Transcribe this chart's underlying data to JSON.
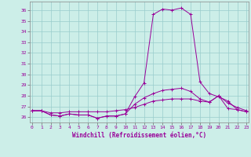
{
  "xlabel": "Windchill (Refroidissement éolien,°C)",
  "ylabel": "",
  "bg_color": "#cceee8",
  "line_color": "#990099",
  "grid_color": "#99cccc",
  "x": [
    0,
    1,
    2,
    3,
    4,
    5,
    6,
    7,
    8,
    9,
    10,
    11,
    12,
    13,
    14,
    15,
    16,
    17,
    18,
    19,
    20,
    21,
    22,
    23
  ],
  "curve1": [
    26.6,
    26.6,
    26.2,
    26.1,
    26.3,
    26.2,
    26.2,
    25.9,
    26.1,
    26.1,
    26.3,
    27.9,
    29.2,
    35.6,
    36.1,
    36.0,
    36.2,
    35.6,
    29.3,
    28.2,
    27.9,
    27.5,
    26.7,
    26.5
  ],
  "curve2": [
    26.6,
    26.6,
    26.4,
    26.4,
    26.5,
    26.5,
    26.5,
    26.5,
    26.5,
    26.6,
    26.7,
    26.9,
    27.2,
    27.5,
    27.6,
    27.7,
    27.7,
    27.7,
    27.5,
    27.4,
    28.0,
    27.3,
    26.9,
    26.6
  ],
  "curve3": [
    26.6,
    26.6,
    26.2,
    26.1,
    26.3,
    26.2,
    26.2,
    25.9,
    26.1,
    26.1,
    26.3,
    27.2,
    27.8,
    28.2,
    28.5,
    28.6,
    28.7,
    28.4,
    27.7,
    27.4,
    28.0,
    26.8,
    26.7,
    26.5
  ],
  "ylim": [
    25.5,
    36.8
  ],
  "xlim": [
    -0.2,
    23.2
  ],
  "yticks": [
    26,
    27,
    28,
    29,
    30,
    31,
    32,
    33,
    34,
    35,
    36
  ],
  "xticks": [
    0,
    1,
    2,
    3,
    4,
    5,
    6,
    7,
    8,
    9,
    10,
    11,
    12,
    13,
    14,
    15,
    16,
    17,
    18,
    19,
    20,
    21,
    22,
    23
  ]
}
